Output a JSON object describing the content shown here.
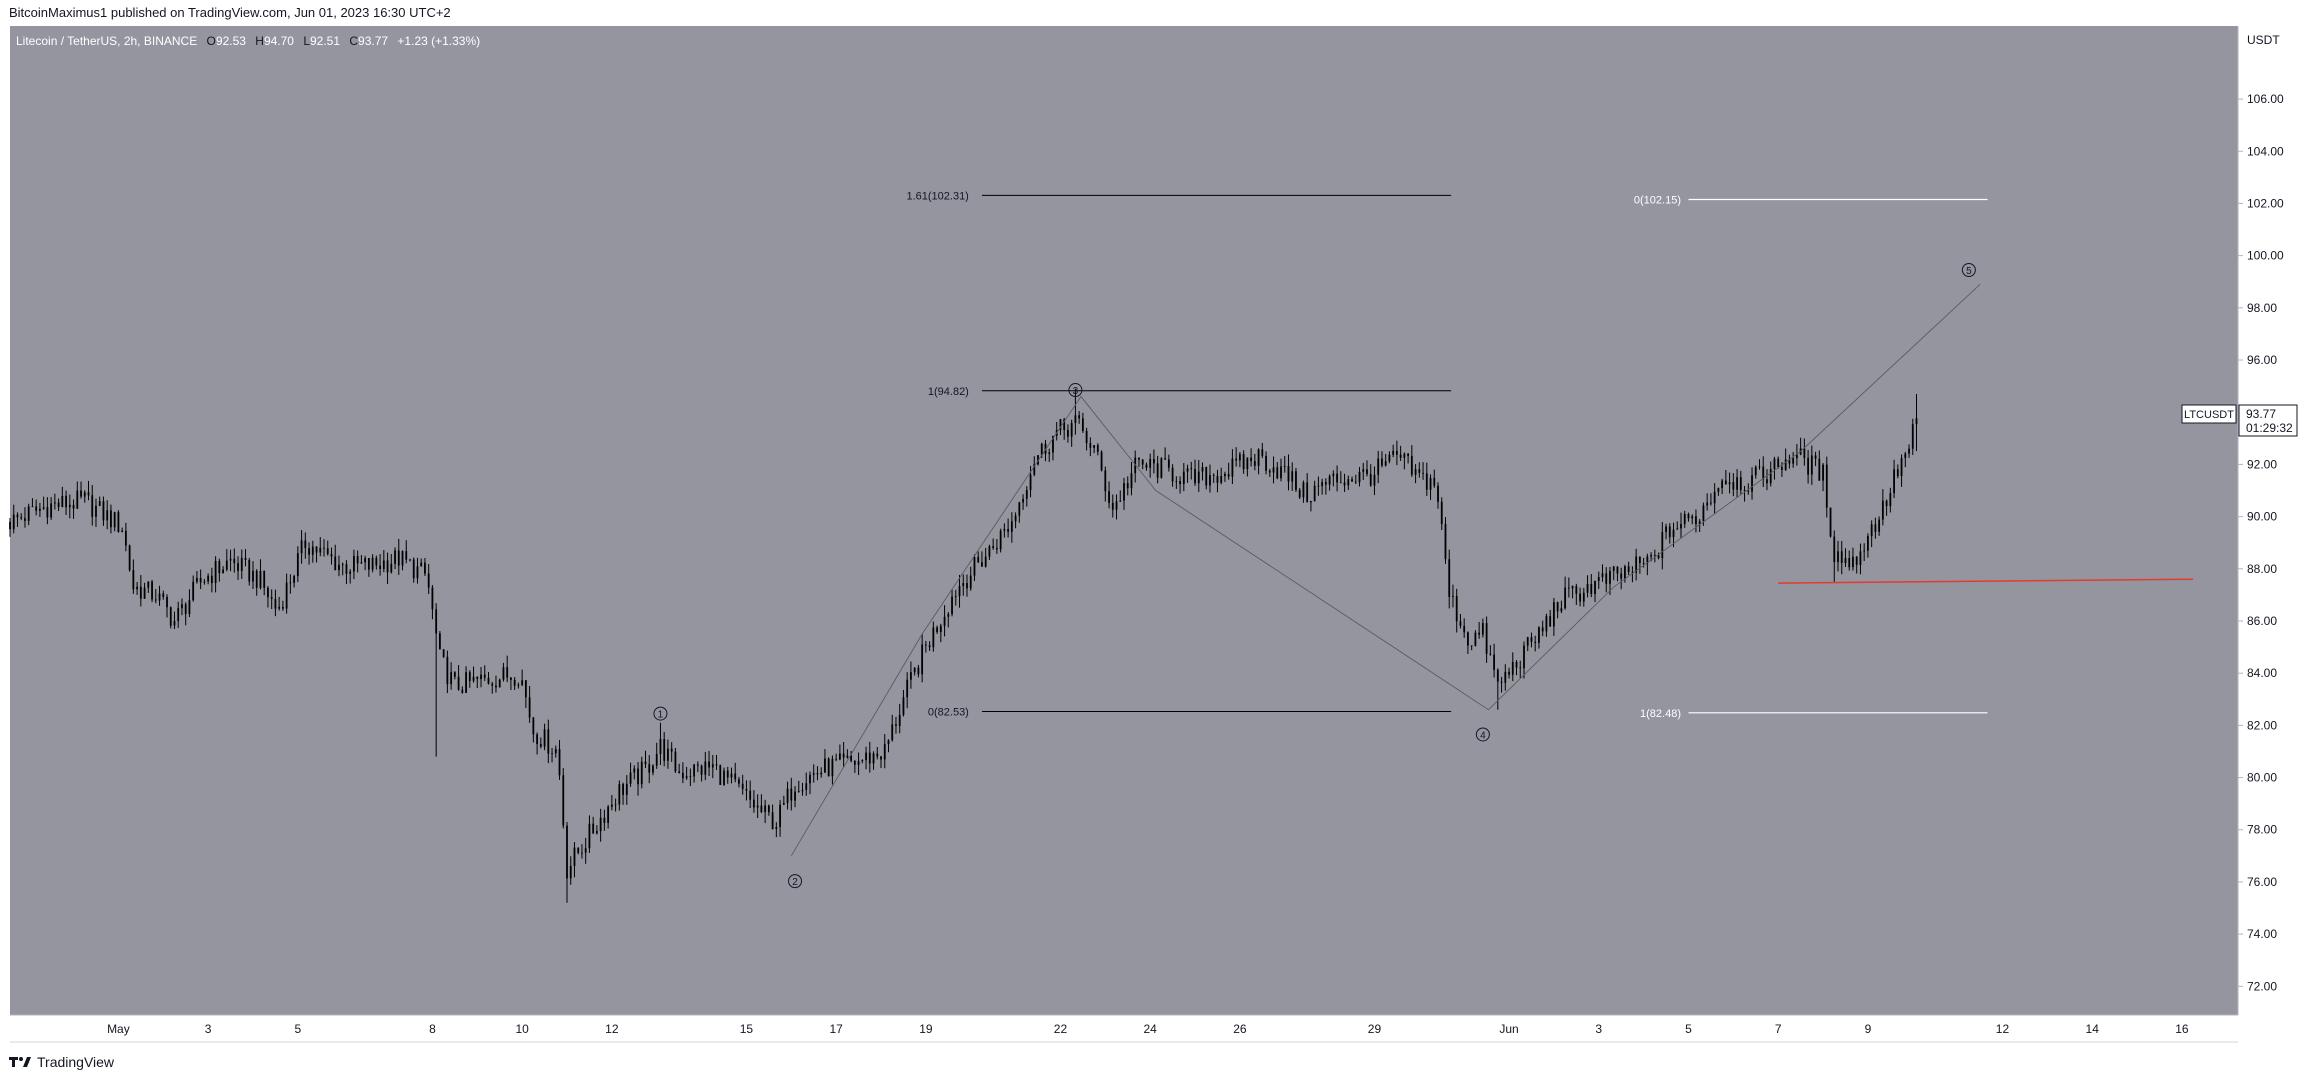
{
  "header": {
    "published": "BitcoinMaximus1 published on TradingView.com, Jun 01, 2023 16:30 UTC+2"
  },
  "legend": {
    "symbol": "Litecoin / TetherUS, 2h, BINANCE",
    "o_label": "O",
    "o_value": "92.53",
    "h_label": "H",
    "h_value": "94.70",
    "l_label": "L",
    "l_value": "92.51",
    "c_label": "C",
    "c_value": "93.77",
    "change": "+1.23 (+1.33%)"
  },
  "price_axis": {
    "currency": "USDT",
    "ticks": [
      "72.00",
      "74.00",
      "76.00",
      "78.00",
      "80.00",
      "82.00",
      "84.00",
      "86.00",
      "88.00",
      "90.00",
      "92.00",
      "94.00",
      "96.00",
      "98.00",
      "100.00",
      "102.00",
      "104.00",
      "106.00"
    ],
    "symbol_tag": "LTCUSDT",
    "last_price": "93.77",
    "countdown": "01:29:32"
  },
  "time_axis": {
    "ticks": [
      "May",
      "3",
      "5",
      "8",
      "10",
      "12",
      "15",
      "17",
      "19",
      "22",
      "24",
      "26",
      "29",
      "Jun",
      "3",
      "5",
      "7",
      "9",
      "12",
      "14",
      "16"
    ]
  },
  "footer": {
    "brand": "TradingView"
  },
  "colors": {
    "background": "#94959e",
    "candle": "#000000",
    "fib_left": "#000000",
    "fib_right": "#ffffff",
    "support": "#e53935",
    "wave_path": "#5a5b62"
  },
  "chart_data": {
    "type": "candlestick",
    "title": "Litecoin / TetherUS, 2h, BINANCE",
    "y_range": [
      70.9,
      108.8
    ],
    "x_range": [
      "2023-04-29 14:00",
      "2023-06-18 06:00"
    ],
    "x_unit": "hours since 2023-05-01 00:00",
    "x_view": [
      -58,
      1134
    ],
    "close_path": [
      {
        "t": -58,
        "v": 89.8
      },
      {
        "t": -38,
        "v": 90.4
      },
      {
        "t": -18,
        "v": 90.6
      },
      {
        "t": 2,
        "v": 89.6
      },
      {
        "t": 8,
        "v": 87.3
      },
      {
        "t": 20,
        "v": 87.0
      },
      {
        "t": 30,
        "v": 86.0
      },
      {
        "t": 45,
        "v": 87.6
      },
      {
        "t": 60,
        "v": 88.3
      },
      {
        "t": 75,
        "v": 87.6
      },
      {
        "t": 85,
        "v": 86.4
      },
      {
        "t": 100,
        "v": 89.0
      },
      {
        "t": 120,
        "v": 88.1
      },
      {
        "t": 135,
        "v": 88.1
      },
      {
        "t": 150,
        "v": 88.4
      },
      {
        "t": 165,
        "v": 87.7
      },
      {
        "t": 172,
        "v": 84.5
      },
      {
        "t": 180,
        "v": 83.5
      },
      {
        "t": 200,
        "v": 83.8
      },
      {
        "t": 215,
        "v": 84.0
      },
      {
        "t": 222,
        "v": 81.8
      },
      {
        "t": 235,
        "v": 81.0
      },
      {
        "t": 240,
        "v": 76.5
      },
      {
        "t": 252,
        "v": 77.8
      },
      {
        "t": 268,
        "v": 79.5
      },
      {
        "t": 282,
        "v": 80.3
      },
      {
        "t": 290,
        "v": 81.2
      },
      {
        "t": 300,
        "v": 80.2
      },
      {
        "t": 318,
        "v": 80.4
      },
      {
        "t": 332,
        "v": 79.5
      },
      {
        "t": 345,
        "v": 78.6
      },
      {
        "t": 352,
        "v": 78.3
      },
      {
        "t": 362,
        "v": 79.8
      },
      {
        "t": 380,
        "v": 80.4
      },
      {
        "t": 395,
        "v": 80.6
      },
      {
        "t": 410,
        "v": 81.0
      },
      {
        "t": 420,
        "v": 83.0
      },
      {
        "t": 432,
        "v": 85.0
      },
      {
        "t": 448,
        "v": 87.2
      },
      {
        "t": 465,
        "v": 88.6
      },
      {
        "t": 478,
        "v": 89.8
      },
      {
        "t": 490,
        "v": 92.2
      },
      {
        "t": 502,
        "v": 93.2
      },
      {
        "t": 512,
        "v": 93.6
      },
      {
        "t": 522,
        "v": 92.6
      },
      {
        "t": 532,
        "v": 90.3
      },
      {
        "t": 545,
        "v": 92.0
      },
      {
        "t": 560,
        "v": 91.8
      },
      {
        "t": 575,
        "v": 91.4
      },
      {
        "t": 595,
        "v": 91.8
      },
      {
        "t": 610,
        "v": 92.3
      },
      {
        "t": 625,
        "v": 91.6
      },
      {
        "t": 635,
        "v": 90.8
      },
      {
        "t": 650,
        "v": 91.4
      },
      {
        "t": 670,
        "v": 91.6
      },
      {
        "t": 685,
        "v": 92.3
      },
      {
        "t": 695,
        "v": 91.5
      },
      {
        "t": 705,
        "v": 91.3
      },
      {
        "t": 712,
        "v": 87.0
      },
      {
        "t": 722,
        "v": 85.3
      },
      {
        "t": 730,
        "v": 85.5
      },
      {
        "t": 738,
        "v": 83.5
      },
      {
        "t": 748,
        "v": 84.4
      },
      {
        "t": 760,
        "v": 85.5
      },
      {
        "t": 772,
        "v": 86.8
      },
      {
        "t": 790,
        "v": 87.4
      },
      {
        "t": 805,
        "v": 87.8
      },
      {
        "t": 820,
        "v": 88.3
      },
      {
        "t": 830,
        "v": 89.5
      },
      {
        "t": 845,
        "v": 90.0
      },
      {
        "t": 858,
        "v": 91.5
      },
      {
        "t": 872,
        "v": 91.3
      },
      {
        "t": 885,
        "v": 91.8
      },
      {
        "t": 896,
        "v": 92.4
      },
      {
        "t": 905,
        "v": 92.0
      },
      {
        "t": 912,
        "v": 91.6
      },
      {
        "t": 918,
        "v": 88.6
      },
      {
        "t": 928,
        "v": 88.2
      },
      {
        "t": 934,
        "v": 89.0
      },
      {
        "t": 944,
        "v": 90.3
      },
      {
        "t": 952,
        "v": 91.8
      },
      {
        "t": 958,
        "v": 92.6
      },
      {
        "t": 962,
        "v": 93.77
      }
    ],
    "annotations": {
      "fib_left": [
        {
          "label": "1.61(102.31)",
          "price": 102.31
        },
        {
          "label": "1(94.82)",
          "price": 94.82
        },
        {
          "label": "0(82.53)",
          "price": 82.53
        }
      ],
      "fib_right": [
        {
          "label": "0(102.15)",
          "price": 102.15
        },
        {
          "label": "1(82.48)",
          "price": 82.48
        }
      ],
      "waves": [
        {
          "label": "1",
          "t": 290,
          "price": 82.45
        },
        {
          "label": "2",
          "t": 362,
          "price": 76.03
        },
        {
          "label": "3",
          "t": 512,
          "price": 94.85
        },
        {
          "label": "4",
          "t": 730,
          "price": 81.65
        },
        {
          "label": "5",
          "t": 990,
          "price": 99.45
        }
      ],
      "wave_path": [
        {
          "t": 360,
          "price": 77.0
        },
        {
          "t": 430,
          "price": 85.5
        },
        {
          "t": 515,
          "price": 94.6
        },
        {
          "t": 555,
          "price": 91.0
        },
        {
          "t": 733,
          "price": 82.6
        },
        {
          "t": 800,
          "price": 87.3
        },
        {
          "t": 900,
          "price": 92.5
        },
        {
          "t": 996,
          "price": 98.9
        }
      ],
      "support": {
        "price_start": 87.45,
        "price_end": 87.6,
        "t_start": 888,
        "t_end": 1110
      }
    }
  }
}
